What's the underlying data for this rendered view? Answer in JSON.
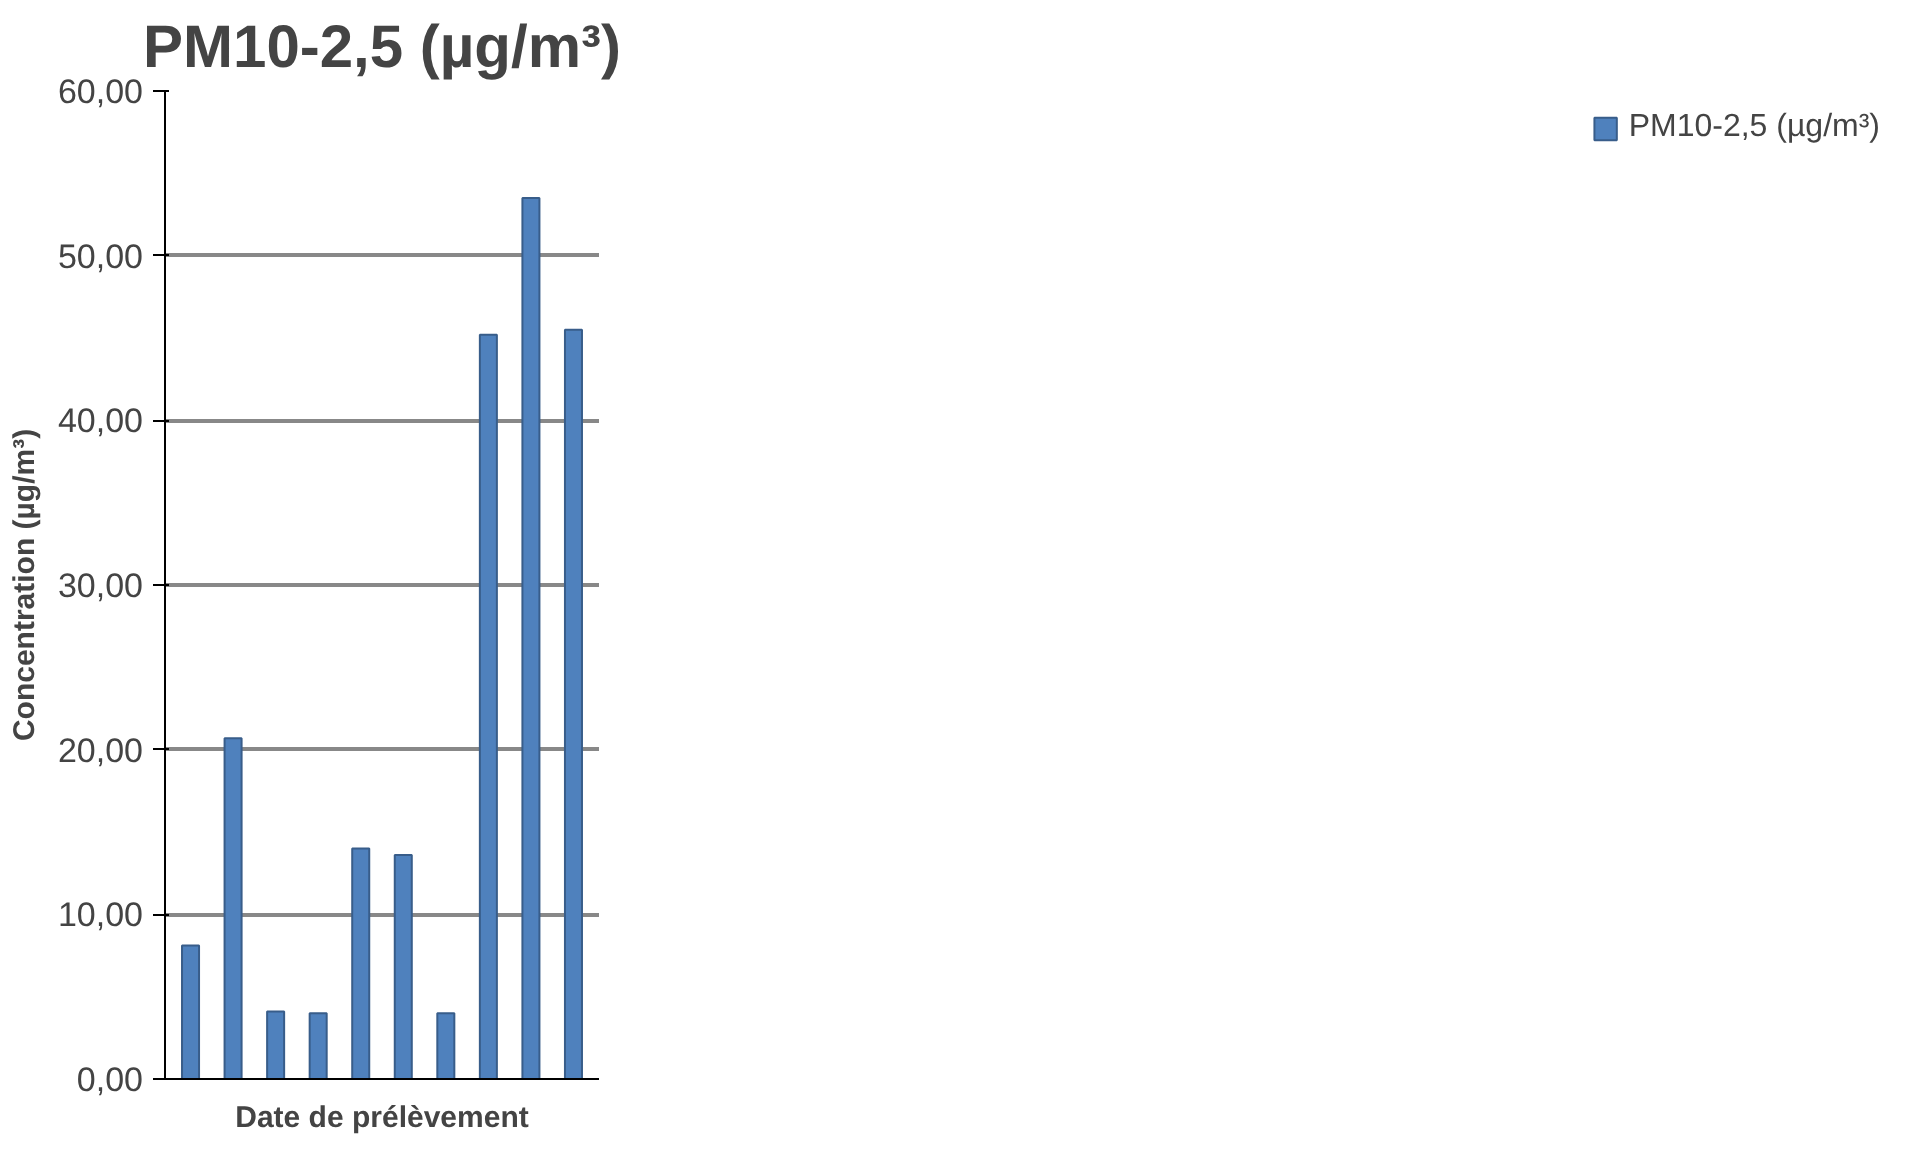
{
  "chart_data": {
    "type": "bar",
    "title": "PM10-2,5 (µg/m³)",
    "xlabel": "Date de prélèvement",
    "ylabel": "Concentration (µg/m³)",
    "categories": [
      null,
      null,
      null,
      null,
      null,
      null,
      null,
      null,
      null,
      null
    ],
    "series": [
      {
        "name": "PM10-2,5 (µg/m³)",
        "color": "#4f81bd",
        "values": [
          8.1,
          20.7,
          4.1,
          4.0,
          14.0,
          13.6,
          4.0,
          45.2,
          53.5,
          45.5
        ]
      }
    ],
    "ylim": [
      0,
      60
    ],
    "yticks": [
      {
        "value": 0,
        "label": "0,00"
      },
      {
        "value": 10,
        "label": "10,00"
      },
      {
        "value": 20,
        "label": "20,00"
      },
      {
        "value": 30,
        "label": "30,00"
      },
      {
        "value": 40,
        "label": "40,00"
      },
      {
        "value": 50,
        "label": "50,00"
      },
      {
        "value": 60,
        "label": "60,00"
      }
    ],
    "grid": "y",
    "legend": "right"
  }
}
